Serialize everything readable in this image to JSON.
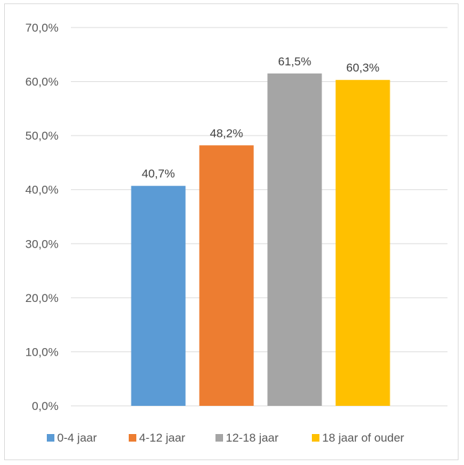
{
  "chart_data": {
    "type": "bar",
    "categories": [
      "0-4 jaar",
      "4-12 jaar",
      "12-18 jaar",
      "18 jaar of ouder"
    ],
    "values": [
      40.7,
      48.2,
      61.5,
      60.3
    ],
    "data_labels": [
      "40,7%",
      "48,2%",
      "61,5%",
      "60,3%"
    ],
    "colors": [
      "#5b9bd5",
      "#ed7d31",
      "#a5a5a5",
      "#ffc000"
    ],
    "ylim": [
      0,
      70
    ],
    "yticks": [
      0,
      10,
      20,
      30,
      40,
      50,
      60,
      70
    ],
    "ytick_labels": [
      "0,0%",
      "10,0%",
      "20,0%",
      "30,0%",
      "40,0%",
      "50,0%",
      "60,0%",
      "70,0%"
    ],
    "grid": true,
    "legend": {
      "position": "bottom",
      "entries": [
        "0-4 jaar",
        "4-12 jaar",
        "12-18 jaar",
        "18 jaar of ouder"
      ]
    }
  }
}
